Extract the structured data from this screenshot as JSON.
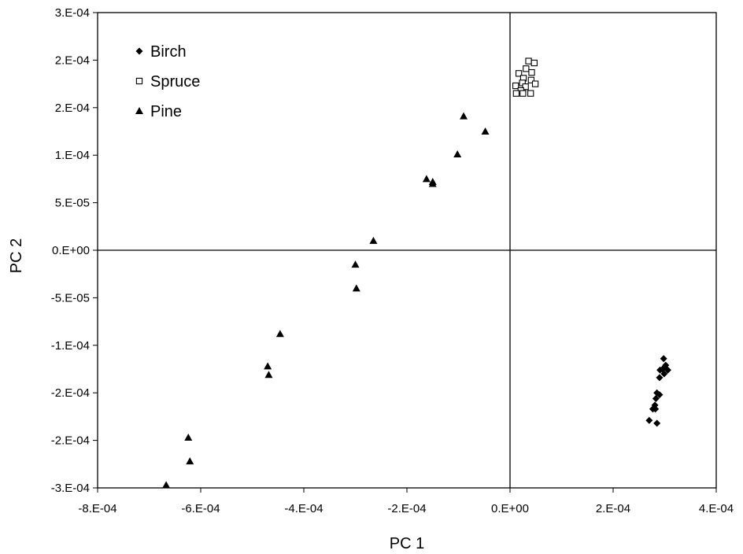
{
  "chart_data": {
    "type": "scatter",
    "title": "",
    "xlabel": "PC 1",
    "ylabel": "PC 2",
    "xlim": [
      -0.0008,
      0.0004
    ],
    "ylim": [
      -0.00025,
      0.00025
    ],
    "x_ticks": [
      -0.0008,
      -0.0006,
      -0.0004,
      -0.0002,
      0,
      0.0002,
      0.0004
    ],
    "x_tick_labels": [
      "-8.E-04",
      "-6.E-04",
      "-4.E-04",
      "-2.E-04",
      "0.E+00",
      "2.E-04",
      "4.E-04"
    ],
    "y_ticks": [
      0.00025,
      0.0002,
      0.00015,
      0.0001,
      5e-05,
      0,
      -5e-05,
      -0.0001,
      -0.00015,
      -0.0002,
      -0.00025
    ],
    "y_tick_labels": [
      "3.E-04",
      "2.E-04",
      "2.E-04",
      "1.E-04",
      "5.E-05",
      "0.E+00",
      "-5.E-05",
      "-1.E-04",
      "-2.E-04",
      "-2.E-04",
      "-3.E-04"
    ],
    "grid": false,
    "legend_position": "top-left",
    "series": [
      {
        "name": "Birch",
        "marker": "diamond-filled",
        "color": "#000000",
        "points": [
          [
            0.000298,
            -0.000114
          ],
          [
            0.000302,
            -0.000121
          ],
          [
            0.000306,
            -0.000126
          ],
          [
            0.000296,
            -0.000125
          ],
          [
            0.000291,
            -0.000126
          ],
          [
            0.000299,
            -0.00013
          ],
          [
            0.00029,
            -0.000134
          ],
          [
            0.000285,
            -0.00015
          ],
          [
            0.00029,
            -0.000152
          ],
          [
            0.000283,
            -0.000156
          ],
          [
            0.000281,
            -0.000163
          ],
          [
            0.000277,
            -0.000167
          ],
          [
            0.000282,
            -0.000167
          ],
          [
            0.00027,
            -0.000179
          ],
          [
            0.000285,
            -0.000182
          ]
        ]
      },
      {
        "name": "Spruce",
        "marker": "square-open",
        "color": "#000000",
        "points": [
          [
            3.6e-05,
            0.000199
          ],
          [
            4.7e-05,
            0.000197
          ],
          [
            3.1e-05,
            0.000191
          ],
          [
            1.7e-05,
            0.000186
          ],
          [
            4.2e-05,
            0.000187
          ],
          [
            2.6e-05,
            0.000181
          ],
          [
            4.1e-05,
            0.000179
          ],
          [
            1.1e-05,
            0.000173
          ],
          [
            2.4e-05,
            0.000176
          ],
          [
            4.9e-05,
            0.000175
          ],
          [
            3e-05,
            0.000172
          ],
          [
            2.1e-05,
            0.000168
          ],
          [
            1.2e-05,
            0.000165
          ],
          [
            2.5e-05,
            0.000165
          ],
          [
            4e-05,
            0.000165
          ]
        ]
      },
      {
        "name": "Pine",
        "marker": "triangle-filled",
        "color": "#000000",
        "points": [
          [
            -9e-05,
            0.000141
          ],
          [
            -4.8e-05,
            0.000125
          ],
          [
            -0.000102,
            0.000101
          ],
          [
            -0.000162,
            7.5e-05
          ],
          [
            -0.00015,
            7.2e-05
          ],
          [
            -0.00015,
            7e-05
          ],
          [
            -0.000265,
            1e-05
          ],
          [
            -0.0003,
            -1.5e-05
          ],
          [
            -0.000298,
            -4e-05
          ],
          [
            -0.000446,
            -8.8e-05
          ],
          [
            -0.00047,
            -0.000122
          ],
          [
            -0.000468,
            -0.000131
          ],
          [
            -0.000624,
            -0.000197
          ],
          [
            -0.000621,
            -0.000222
          ],
          [
            -0.000667,
            -0.000247
          ]
        ]
      }
    ]
  }
}
